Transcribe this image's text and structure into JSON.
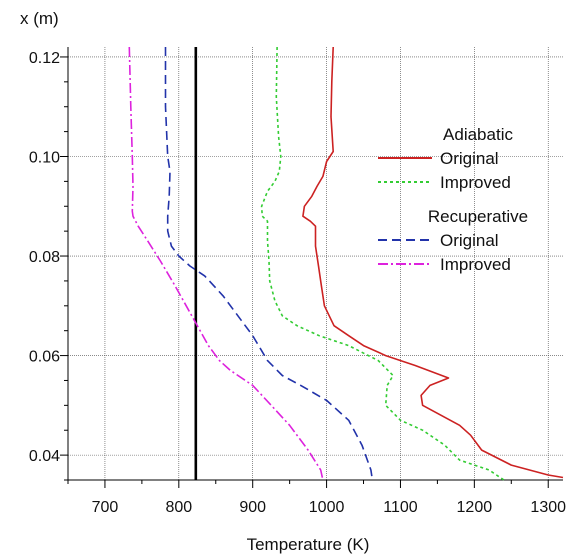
{
  "chart_data": {
    "type": "line",
    "title": "",
    "xlabel": "Temperature (K)",
    "ylabel": "x (m)",
    "xlim": [
      650,
      1320
    ],
    "ylim": [
      0.035,
      0.122
    ],
    "xticks": [
      700,
      800,
      900,
      1000,
      1100,
      1200,
      1300
    ],
    "yticks": [
      0.04,
      0.06,
      0.08,
      0.1,
      0.12
    ],
    "ytick_labels": [
      "0.04",
      "0.06",
      "0.08",
      "0.10",
      "0.12"
    ],
    "grid": true,
    "legend_position": "right",
    "legend_groups": [
      {
        "title": "Adiabatic",
        "entries": [
          {
            "series_index": 0,
            "label": "Original"
          },
          {
            "series_index": 1,
            "label": "Improved"
          }
        ]
      },
      {
        "title": "Recuperative",
        "entries": [
          {
            "series_index": 2,
            "label": "Original"
          },
          {
            "series_index": 3,
            "label": "Improved"
          }
        ]
      }
    ],
    "vertical_line": {
      "x": 823,
      "color": "#000000"
    },
    "series": [
      {
        "group": "Adiabatic",
        "name": "Original",
        "color": "#cc2222",
        "dash": "solid",
        "points": [
          [
            1009,
            0.122
          ],
          [
            1007,
            0.115
          ],
          [
            1006,
            0.108
          ],
          [
            1009,
            0.101
          ],
          [
            1000,
            0.099
          ],
          [
            995,
            0.096
          ],
          [
            987,
            0.094
          ],
          [
            980,
            0.092
          ],
          [
            970,
            0.09
          ],
          [
            968,
            0.088
          ],
          [
            978,
            0.087
          ],
          [
            985,
            0.086
          ],
          [
            985,
            0.082
          ],
          [
            989,
            0.078
          ],
          [
            993,
            0.074
          ],
          [
            997,
            0.07
          ],
          [
            1010,
            0.066
          ],
          [
            1030,
            0.064
          ],
          [
            1050,
            0.062
          ],
          [
            1080,
            0.06
          ],
          [
            1120,
            0.058
          ],
          [
            1165,
            0.0555
          ],
          [
            1140,
            0.054
          ],
          [
            1128,
            0.052
          ],
          [
            1130,
            0.05
          ],
          [
            1155,
            0.048
          ],
          [
            1180,
            0.046
          ],
          [
            1195,
            0.044
          ],
          [
            1210,
            0.041
          ],
          [
            1250,
            0.038
          ],
          [
            1300,
            0.036
          ],
          [
            1320,
            0.0355
          ]
        ]
      },
      {
        "group": "Adiabatic",
        "name": "Improved",
        "color": "#33cc33",
        "dash": "3,3",
        "points": [
          [
            933,
            0.122
          ],
          [
            932,
            0.112
          ],
          [
            935,
            0.104
          ],
          [
            938,
            0.1
          ],
          [
            936,
            0.097
          ],
          [
            930,
            0.095
          ],
          [
            920,
            0.093
          ],
          [
            912,
            0.09
          ],
          [
            913,
            0.088
          ],
          [
            920,
            0.087
          ],
          [
            920,
            0.083
          ],
          [
            922,
            0.079
          ],
          [
            923,
            0.075
          ],
          [
            930,
            0.071
          ],
          [
            940,
            0.068
          ],
          [
            960,
            0.066
          ],
          [
            990,
            0.064
          ],
          [
            1030,
            0.062
          ],
          [
            1070,
            0.059
          ],
          [
            1090,
            0.056
          ],
          [
            1082,
            0.054
          ],
          [
            1080,
            0.05
          ],
          [
            1100,
            0.047
          ],
          [
            1130,
            0.045
          ],
          [
            1160,
            0.042
          ],
          [
            1180,
            0.039
          ],
          [
            1220,
            0.037
          ],
          [
            1240,
            0.035
          ]
        ]
      },
      {
        "group": "Recuperative",
        "name": "Original",
        "color": "#2233aa",
        "dash": "9,5",
        "points": [
          [
            782,
            0.122
          ],
          [
            782,
            0.11
          ],
          [
            785,
            0.1
          ],
          [
            788,
            0.097
          ],
          [
            787,
            0.092
          ],
          [
            785,
            0.088
          ],
          [
            785,
            0.085
          ],
          [
            790,
            0.082
          ],
          [
            800,
            0.08
          ],
          [
            815,
            0.078
          ],
          [
            835,
            0.076
          ],
          [
            860,
            0.072
          ],
          [
            880,
            0.068
          ],
          [
            900,
            0.064
          ],
          [
            920,
            0.059
          ],
          [
            940,
            0.056
          ],
          [
            965,
            0.054
          ],
          [
            1000,
            0.051
          ],
          [
            1030,
            0.047
          ],
          [
            1048,
            0.042
          ],
          [
            1060,
            0.037
          ],
          [
            1062,
            0.035
          ]
        ]
      },
      {
        "group": "Recuperative",
        "name": "Improved",
        "color": "#dd22dd",
        "dash": "10,3,2,3",
        "points": [
          [
            733,
            0.122
          ],
          [
            735,
            0.11
          ],
          [
            737,
            0.1
          ],
          [
            738,
            0.094
          ],
          [
            737,
            0.089
          ],
          [
            738,
            0.088
          ],
          [
            745,
            0.086
          ],
          [
            758,
            0.083
          ],
          [
            775,
            0.079
          ],
          [
            795,
            0.074
          ],
          [
            810,
            0.07
          ],
          [
            825,
            0.066
          ],
          [
            840,
            0.062
          ],
          [
            855,
            0.059
          ],
          [
            870,
            0.057
          ],
          [
            900,
            0.054
          ],
          [
            925,
            0.05
          ],
          [
            950,
            0.046
          ],
          [
            975,
            0.041
          ],
          [
            992,
            0.037
          ],
          [
            995,
            0.035
          ]
        ]
      }
    ]
  }
}
